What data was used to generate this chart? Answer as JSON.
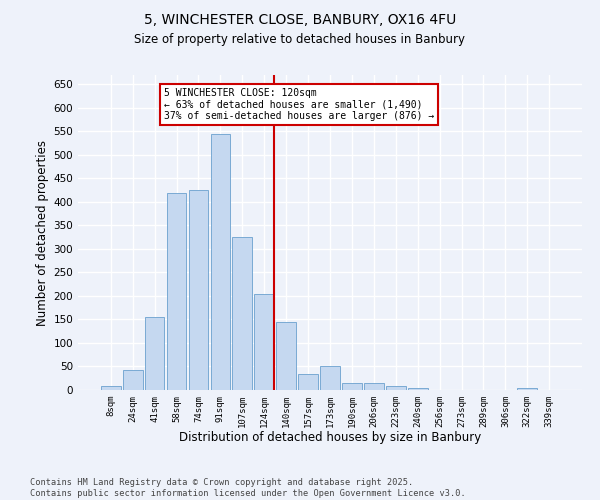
{
  "title1": "5, WINCHESTER CLOSE, BANBURY, OX16 4FU",
  "title2": "Size of property relative to detached houses in Banbury",
  "xlabel": "Distribution of detached houses by size in Banbury",
  "ylabel": "Number of detached properties",
  "categories": [
    "8sqm",
    "24sqm",
    "41sqm",
    "58sqm",
    "74sqm",
    "91sqm",
    "107sqm",
    "124sqm",
    "140sqm",
    "157sqm",
    "173sqm",
    "190sqm",
    "206sqm",
    "223sqm",
    "240sqm",
    "256sqm",
    "273sqm",
    "289sqm",
    "306sqm",
    "322sqm",
    "339sqm"
  ],
  "values": [
    8,
    43,
    155,
    420,
    425,
    545,
    325,
    205,
    145,
    35,
    50,
    15,
    14,
    8,
    5,
    0,
    0,
    0,
    0,
    5,
    0
  ],
  "bar_color": "#c5d8f0",
  "bar_edge_color": "#7aaad4",
  "vline_color": "#cc0000",
  "annotation_title": "5 WINCHESTER CLOSE: 120sqm",
  "annotation_line1": "← 63% of detached houses are smaller (1,490)",
  "annotation_line2": "37% of semi-detached houses are larger (876) →",
  "annotation_box_color": "#ffffff",
  "annotation_box_edge": "#cc0000",
  "footnote1": "Contains HM Land Registry data © Crown copyright and database right 2025.",
  "footnote2": "Contains public sector information licensed under the Open Government Licence v3.0.",
  "ylim": [
    0,
    670
  ],
  "yticks": [
    0,
    50,
    100,
    150,
    200,
    250,
    300,
    350,
    400,
    450,
    500,
    550,
    600,
    650
  ],
  "bg_color": "#eef2fa",
  "grid_color": "#ffffff"
}
